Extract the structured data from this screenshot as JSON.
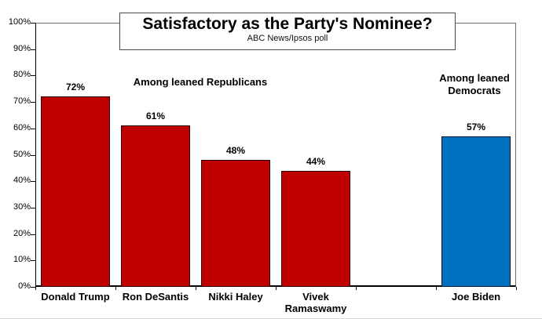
{
  "chart_data": {
    "type": "bar",
    "title": "Satisfactory as the Party's Nominee?",
    "subtitle": "ABC News/Ipsos poll",
    "categories": [
      "Donald Trump",
      "Ron DeSantis",
      "Nikki Haley",
      "Vivek Ramaswamy",
      "",
      "Joe Biden"
    ],
    "values": [
      72,
      61,
      48,
      44,
      null,
      57
    ],
    "value_labels": [
      "72%",
      "61%",
      "48%",
      "44%",
      "",
      "57%"
    ],
    "bar_colors": [
      "#C00000",
      "#C00000",
      "#C00000",
      "#C00000",
      null,
      "#0070C0"
    ],
    "xlabel": "",
    "ylabel": "",
    "ylim": [
      0,
      100
    ],
    "y_tick_values": [
      0,
      10,
      20,
      30,
      40,
      50,
      60,
      70,
      80,
      90,
      100
    ],
    "y_ticks": [
      "0%",
      "10%",
      "20%",
      "30%",
      "40%",
      "50%",
      "60%",
      "70%",
      "80%",
      "90%",
      "100%"
    ],
    "grid": false,
    "legend": "none",
    "annotations": [
      {
        "text": "Among leaned Republicans",
        "group": "republicans"
      },
      {
        "text": "Among leaned Democrats",
        "group": "democrats"
      }
    ],
    "colors": {
      "republican_red": "#C00000",
      "democrat_blue": "#0070C0",
      "background": "#FFFFFF"
    }
  }
}
